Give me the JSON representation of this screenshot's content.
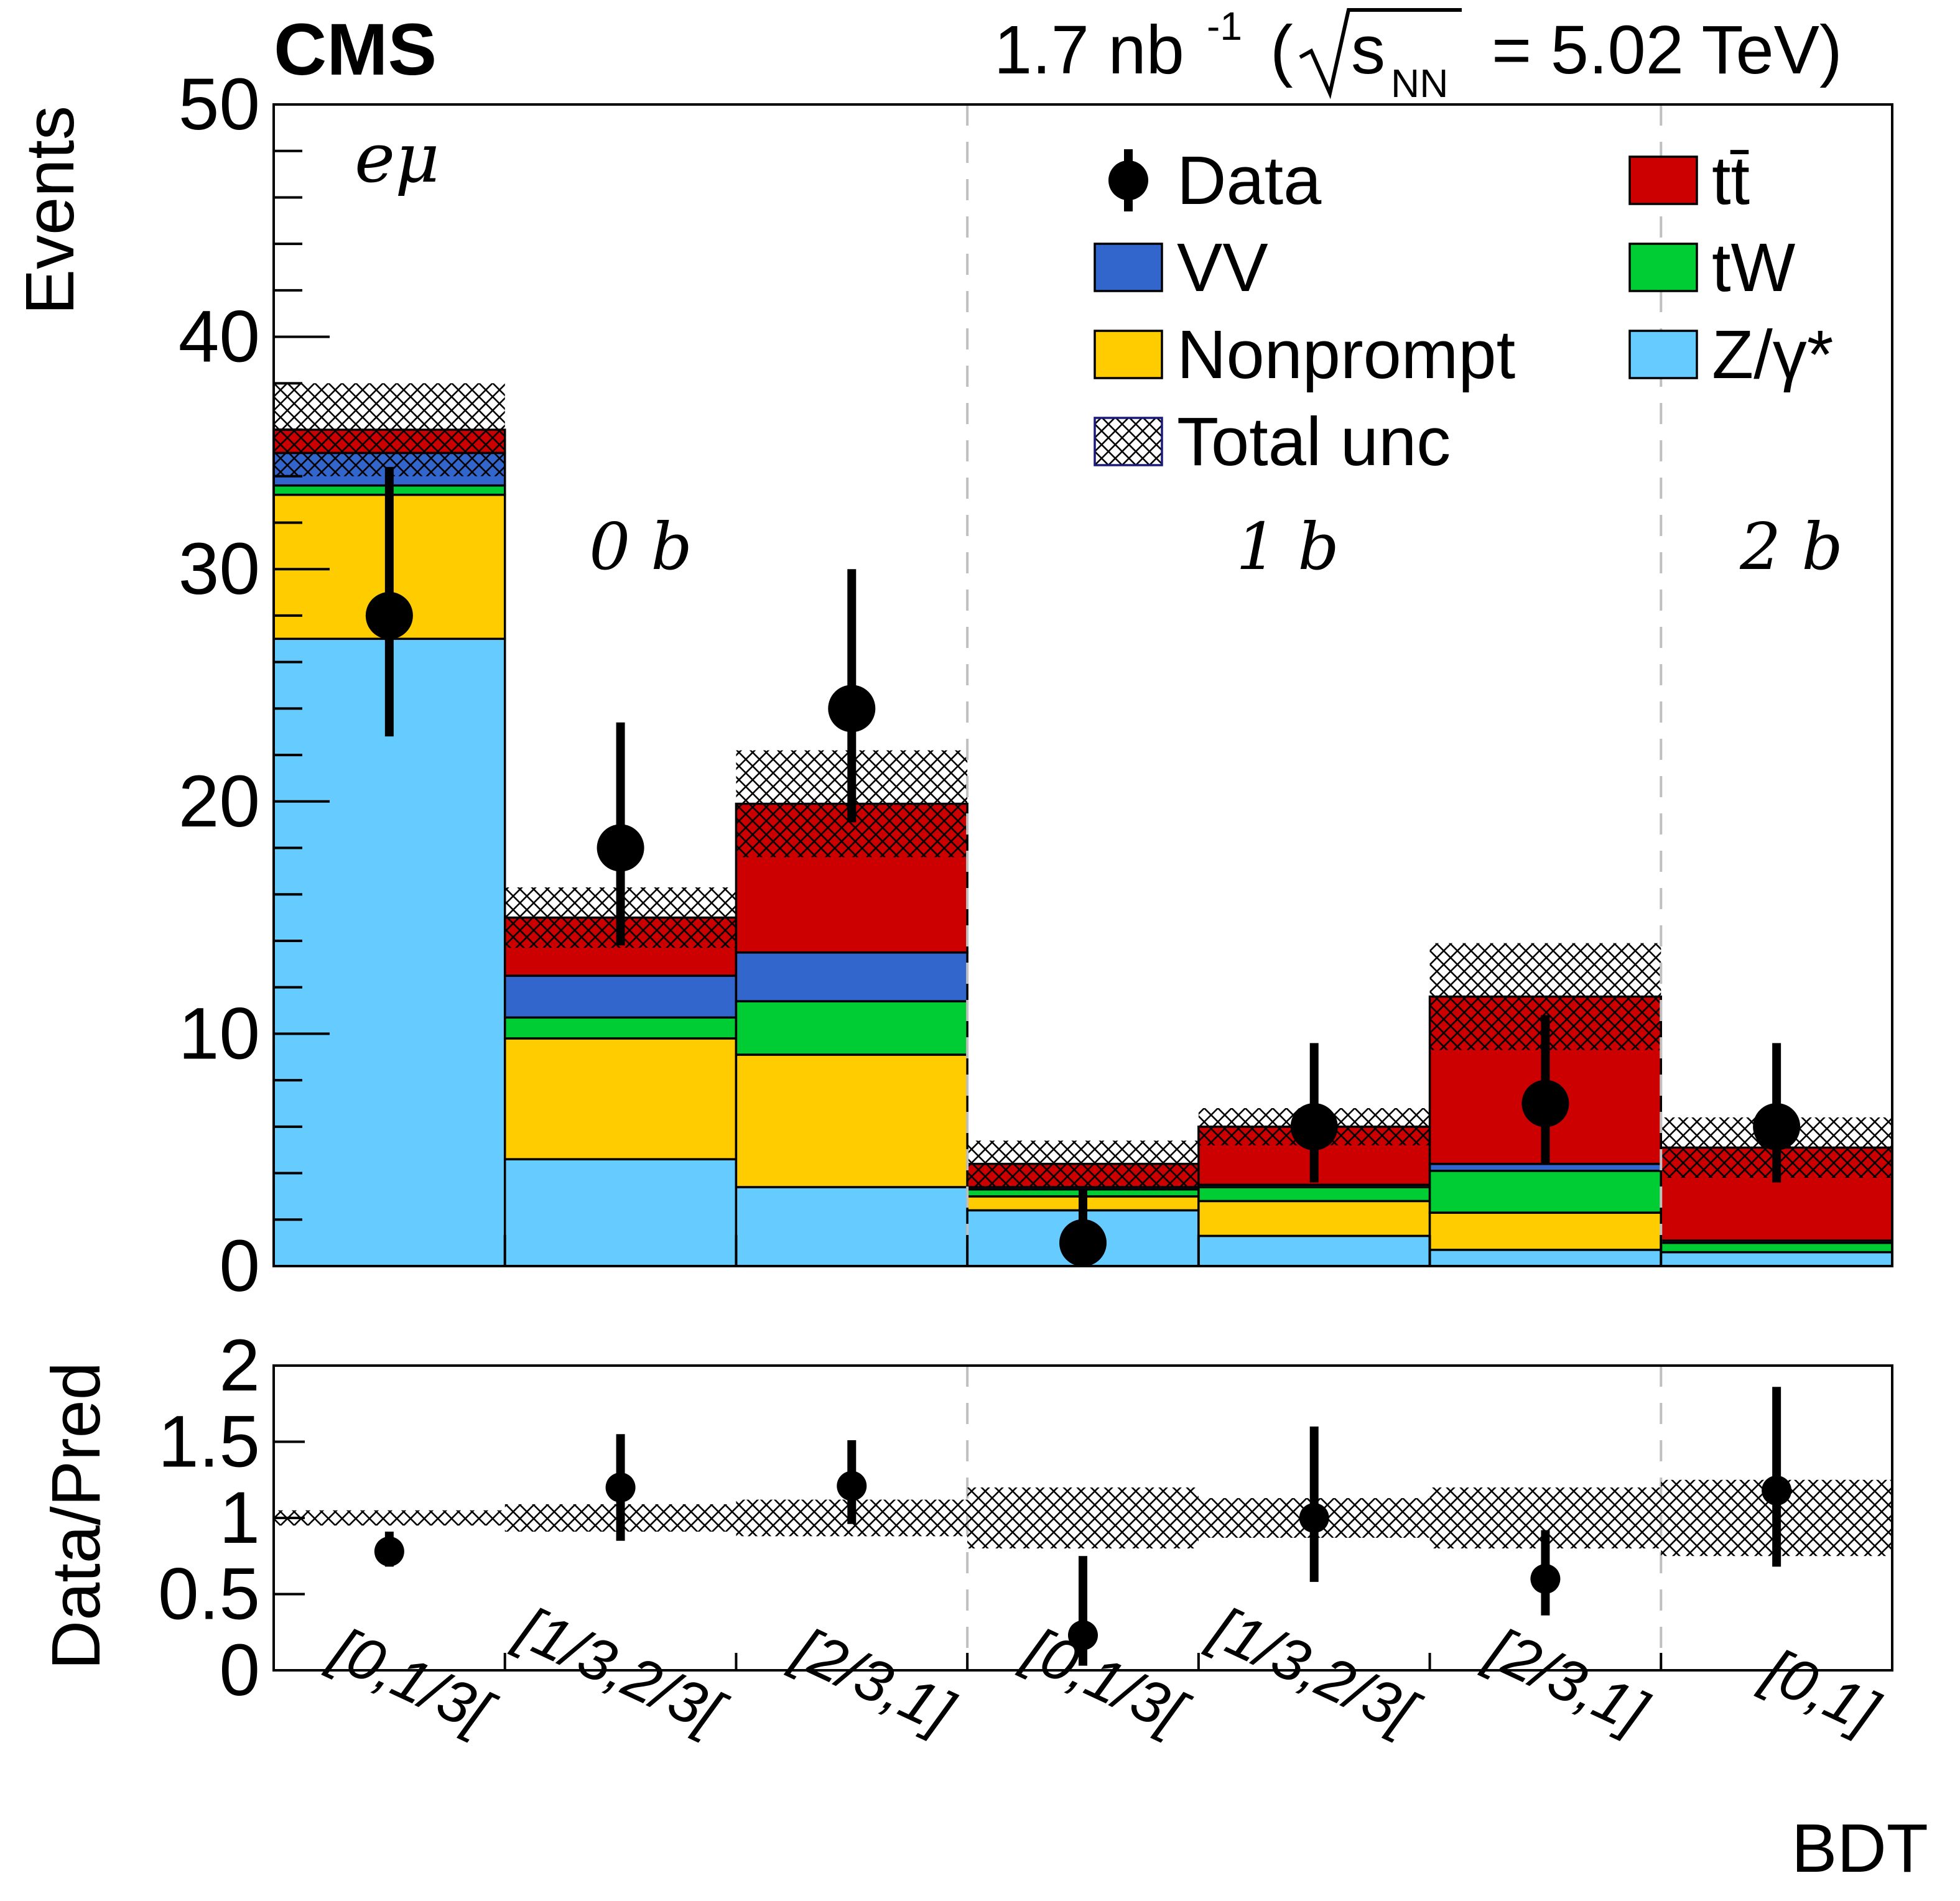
{
  "chart_data": {
    "type": "bar",
    "stacked": true,
    "experiment": "CMS",
    "lumi_label": "1.7 nb",
    "lumi_sup": "-1",
    "energy_label": "s",
    "energy_sub": "NN",
    "energy_value": "= 5.02 TeV)",
    "channel_label": "eμ",
    "ylabel": "Events",
    "ratio_ylabel": "Data/Pred",
    "xlabel": "BDT",
    "ylim": [
      0,
      50
    ],
    "ratio_ylim": [
      0,
      2
    ],
    "yticks": [
      "0",
      "10",
      "20",
      "30",
      "40",
      "50"
    ],
    "ratio_yticks": [
      "0",
      "0.5",
      "1",
      "1.5",
      "2"
    ],
    "categories": [
      "[0,1/3[",
      "[1/3,2/3[",
      "[2/3,1]",
      "[0,1/3[",
      "[1/3,2/3[",
      "[2/3,1]",
      "[0,1]"
    ],
    "region_labels": [
      "0 b",
      "1 b",
      "2 b"
    ],
    "region_bin_counts": [
      3,
      3,
      1
    ],
    "series": [
      {
        "name": "Z/γ*",
        "color": "#66CCFF",
        "values": [
          27.0,
          4.6,
          3.4,
          2.4,
          1.3,
          0.7,
          0.6
        ]
      },
      {
        "name": "Nonprompt",
        "color": "#FFCC00",
        "values": [
          6.2,
          5.2,
          5.7,
          0.6,
          1.5,
          1.6,
          0.0
        ]
      },
      {
        "name": "tW",
        "color": "#00CC33",
        "values": [
          0.4,
          0.9,
          2.3,
          0.3,
          0.6,
          1.8,
          0.4
        ]
      },
      {
        "name": "VV",
        "color": "#3366CC",
        "values": [
          1.4,
          1.8,
          2.1,
          0.1,
          0.1,
          0.3,
          0.1
        ]
      },
      {
        "name": "tt̄",
        "color": "#CC0000",
        "values": [
          1.0,
          2.5,
          6.4,
          1.0,
          2.5,
          7.2,
          4.0
        ]
      }
    ],
    "totals": [
      36.0,
      15.0,
      19.9,
      4.4,
      6.0,
      11.6,
      5.1
    ],
    "total_unc": [
      2.0,
      1.3,
      2.3,
      1.0,
      0.8,
      2.3,
      1.3
    ],
    "data": {
      "name": "Data",
      "values": [
        28,
        18,
        24,
        1,
        6,
        7,
        6
      ],
      "err_up": [
        6.4,
        5.4,
        6.0,
        2.3,
        3.6,
        3.8,
        3.6
      ],
      "err_down": [
        5.2,
        4.2,
        4.9,
        0.9,
        2.4,
        2.6,
        2.4
      ]
    },
    "ratio": {
      "values": [
        0.78,
        1.2,
        1.21,
        0.23,
        1.0,
        0.6,
        1.18
      ],
      "err_up": [
        0.13,
        0.35,
        0.3,
        0.52,
        0.6,
        0.32,
        0.68
      ],
      "err_down": [
        0.1,
        0.35,
        0.25,
        0.2,
        0.42,
        0.24,
        0.5
      ],
      "unc_band": [
        0.05,
        0.09,
        0.12,
        0.2,
        0.13,
        0.2,
        0.25
      ]
    },
    "legend": [
      {
        "label": "Data",
        "kind": "data"
      },
      {
        "label": "tt̄",
        "kind": "fill",
        "color": "#CC0000"
      },
      {
        "label": "VV",
        "kind": "fill",
        "color": "#3366CC"
      },
      {
        "label": "tW",
        "kind": "fill",
        "color": "#00CC33"
      },
      {
        "label": "Nonprompt",
        "kind": "fill",
        "color": "#FFCC00"
      },
      {
        "label": "Z/γ*",
        "kind": "fill",
        "color": "#66CCFF"
      },
      {
        "label": "Total unc",
        "kind": "hatch"
      }
    ],
    "legend_position": "top-right"
  }
}
